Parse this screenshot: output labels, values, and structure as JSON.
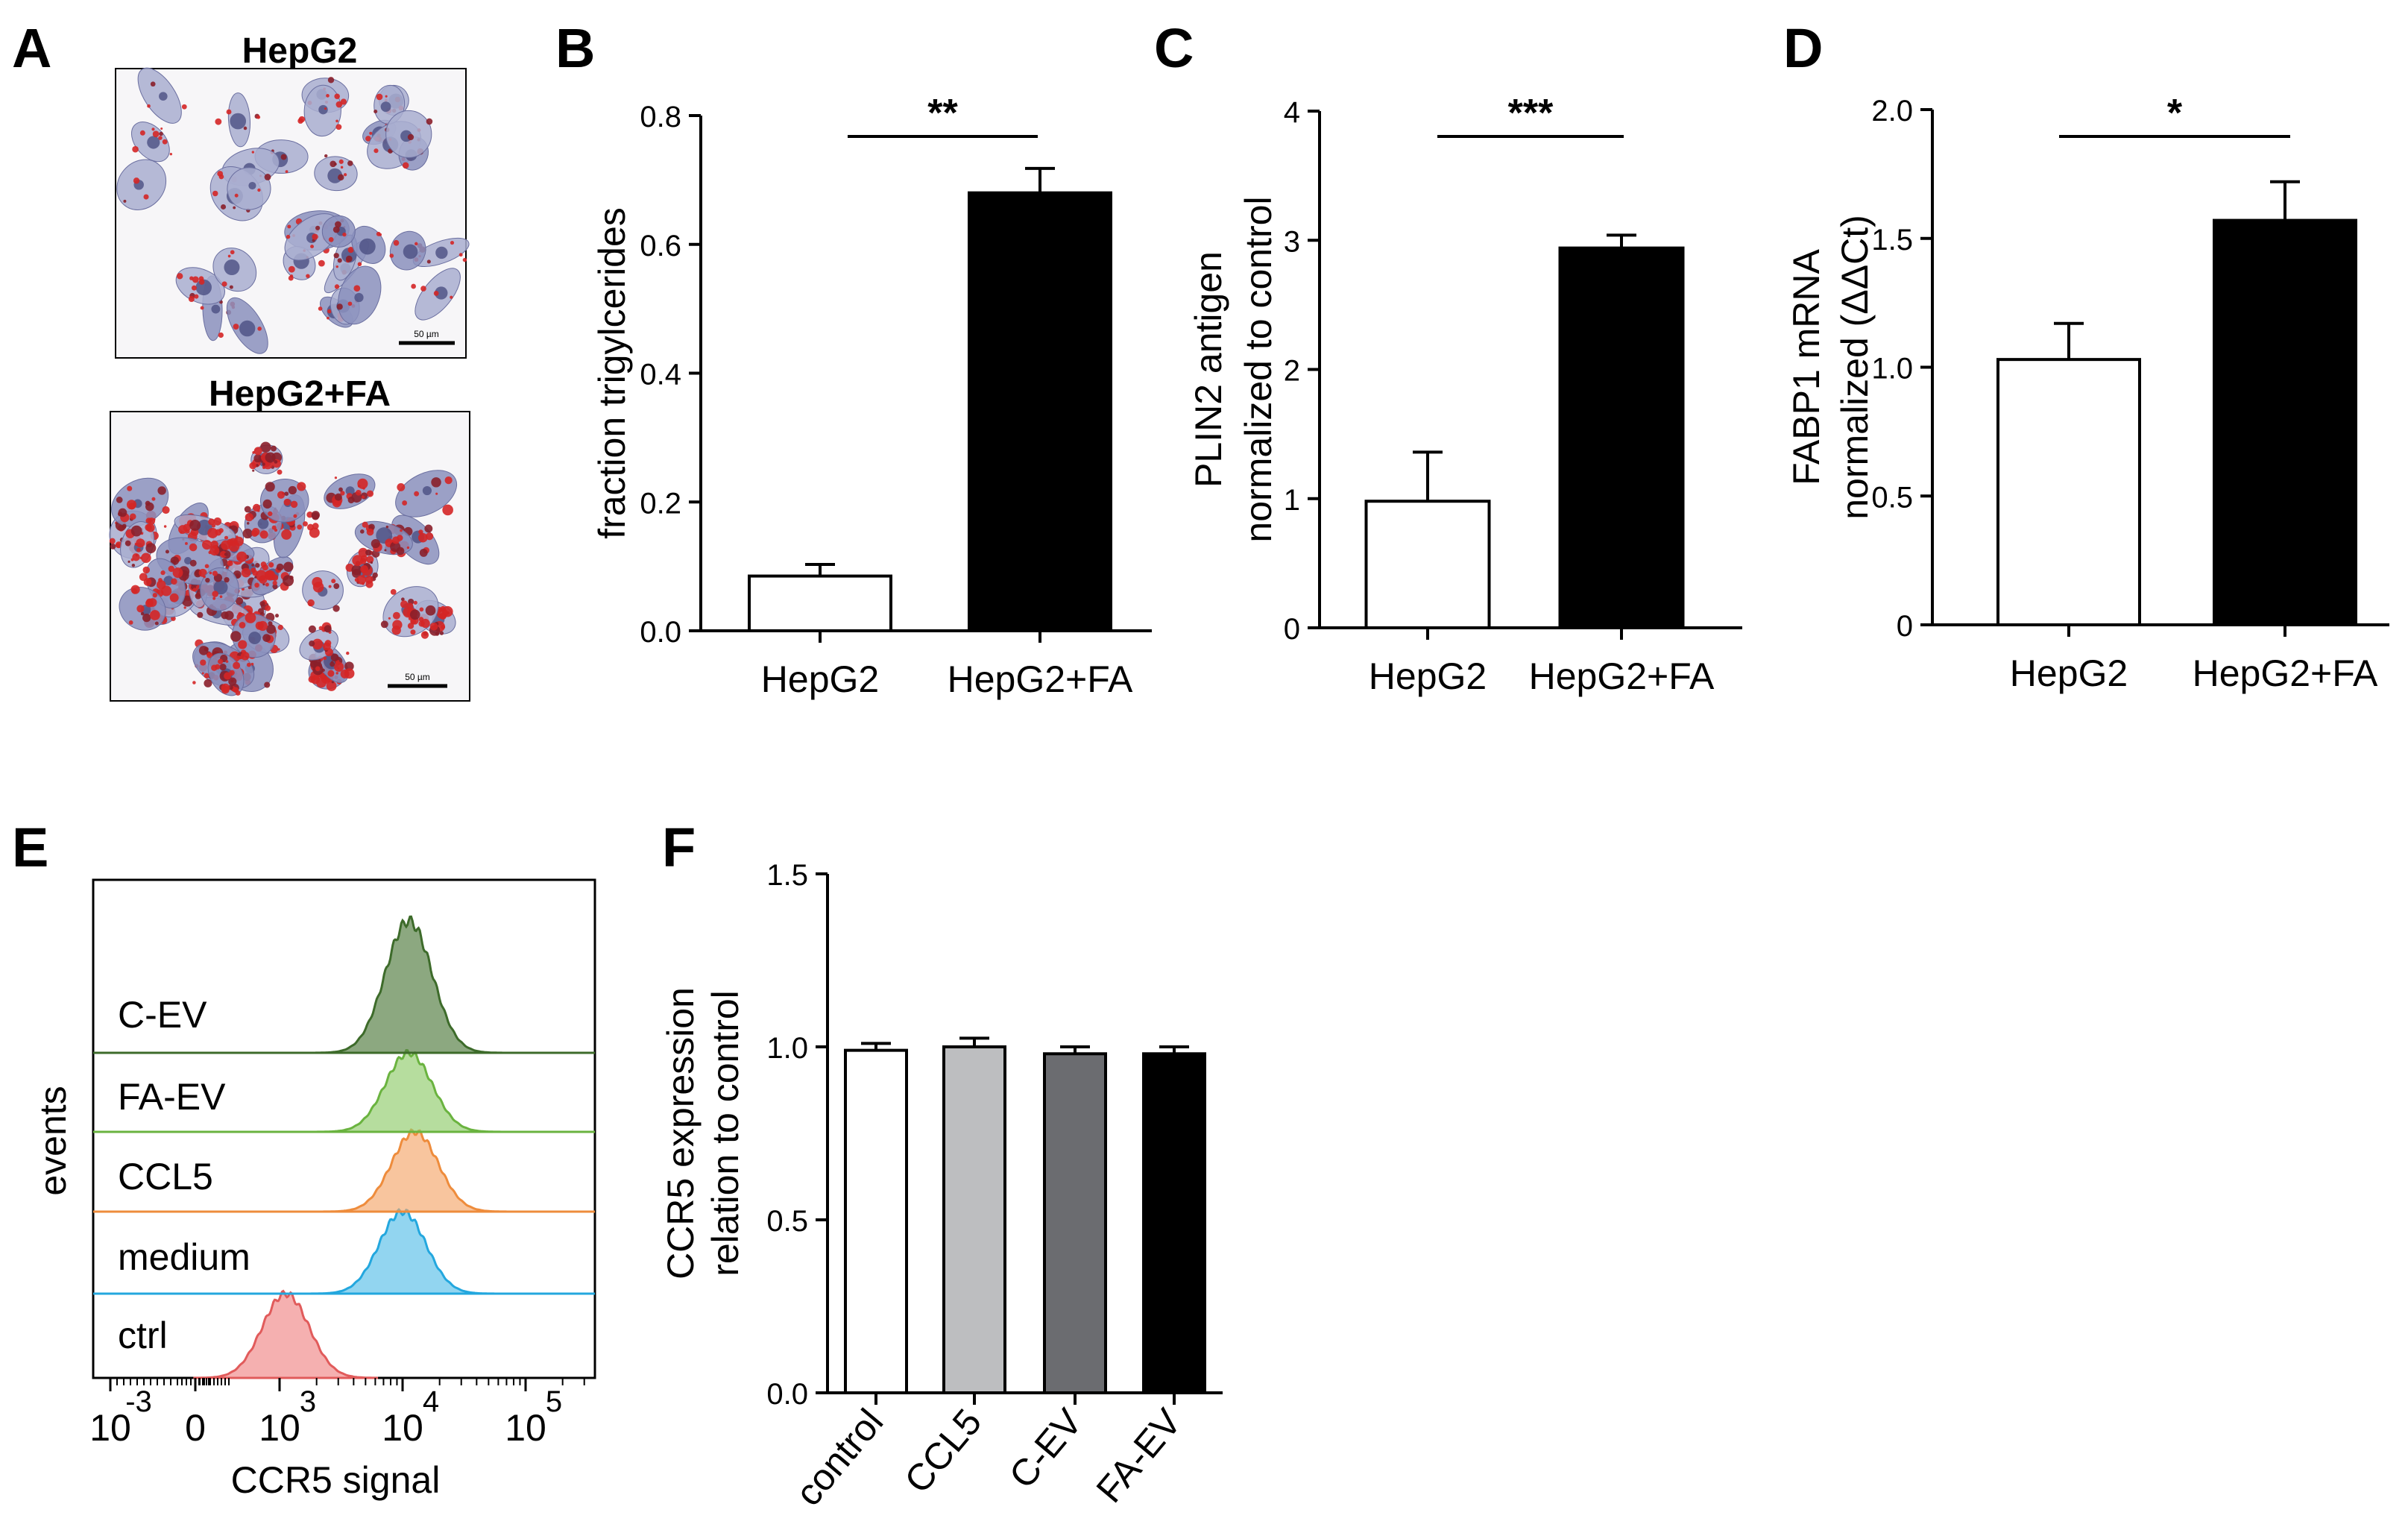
{
  "panel_labels": [
    "A",
    "B",
    "C",
    "D",
    "E",
    "F"
  ],
  "chart_data": [
    {
      "panel": "A",
      "type": "other",
      "images": [
        {
          "title": "HepG2",
          "scale_bar": "50 µm"
        },
        {
          "title": "HepG2+FA",
          "scale_bar": "50 µm"
        }
      ]
    },
    {
      "panel": "B",
      "type": "bar",
      "categories": [
        "HepG2",
        "HepG2+FA"
      ],
      "values": [
        0.085,
        0.68
      ],
      "errors": [
        0.018,
        0.038
      ],
      "colors": [
        "#ffffff",
        "#000000"
      ],
      "ylabel": "fraction trigylcerides",
      "ylim": [
        0,
        0.8
      ],
      "yticks": [
        0,
        0.2,
        0.4,
        0.6,
        0.8
      ],
      "ytick_labels": [
        "0.0",
        "0.2",
        "0.4",
        "0.6",
        "0.8"
      ],
      "significance": "**"
    },
    {
      "panel": "C",
      "type": "bar",
      "categories": [
        "HepG2",
        "HepG2+FA"
      ],
      "values": [
        0.98,
        2.94
      ],
      "errors": [
        0.38,
        0.1
      ],
      "colors": [
        "#ffffff",
        "#000000"
      ],
      "ylabel": "PLIN2 antigen",
      "ylabel2": "normalized to control",
      "ylim": [
        0,
        4
      ],
      "yticks": [
        0,
        1,
        2,
        3,
        4
      ],
      "ytick_labels": [
        "0",
        "1",
        "2",
        "3",
        "4"
      ],
      "significance": "***"
    },
    {
      "panel": "D",
      "type": "bar",
      "categories": [
        "HepG2",
        "HepG2+FA"
      ],
      "values": [
        1.03,
        1.57
      ],
      "errors": [
        0.14,
        0.15
      ],
      "colors": [
        "#ffffff",
        "#000000"
      ],
      "ylabel": "FABP1  mRNA",
      "ylabel2": "normalized (ΔΔCt)",
      "ylim": [
        0,
        2
      ],
      "yticks": [
        0,
        0.5,
        1,
        1.5,
        2
      ],
      "ytick_labels": [
        "0",
        "0.5",
        "1.0",
        "1.5",
        "2.0"
      ],
      "significance": "*"
    },
    {
      "panel": "E",
      "type": "area",
      "xlabel": "CCR5 signal",
      "ylabel": "events",
      "x_scale": "biexponential",
      "xtick_labels": [
        {
          "base": "10",
          "exp": "-3"
        },
        {
          "base": "0",
          "exp": ""
        },
        {
          "base": "10",
          "exp": "3"
        },
        {
          "base": "10",
          "exp": "4"
        },
        {
          "base": "10",
          "exp": "5"
        }
      ],
      "series": [
        {
          "name": "C-EV",
          "peak_log10": 4.05,
          "fill": "#4f7a3c",
          "line": "#3d6b2a"
        },
        {
          "name": "FA-EV",
          "peak_log10": 4.05,
          "fill": "#8fcb6a",
          "line": "#6ab33f"
        },
        {
          "name": "CCL5",
          "peak_log10": 4.1,
          "fill": "#f5a66a",
          "line": "#ee8c3c"
        },
        {
          "name": "medium",
          "peak_log10": 4.0,
          "fill": "#58bfe8",
          "line": "#23a7de"
        },
        {
          "name": "ctrl",
          "peak_log10": 3.05,
          "fill": "#f08686",
          "line": "#e15b5b"
        }
      ]
    },
    {
      "panel": "F",
      "type": "bar",
      "categories": [
        "control",
        "CCL5",
        "C-EV",
        "FA-EV"
      ],
      "values": [
        0.99,
        1.0,
        0.98,
        0.98
      ],
      "errors": [
        0.02,
        0.025,
        0.02,
        0.02
      ],
      "colors": [
        "#ffffff",
        "#bdbec0",
        "#6b6c70",
        "#000000"
      ],
      "ylabel": "CCR5 expression",
      "ylabel2": "relation to control",
      "ylim": [
        0,
        1.5
      ],
      "yticks": [
        0,
        0.5,
        1,
        1.5
      ],
      "ytick_labels": [
        "0.0",
        "0.5",
        "1.0",
        "1.5"
      ]
    }
  ]
}
